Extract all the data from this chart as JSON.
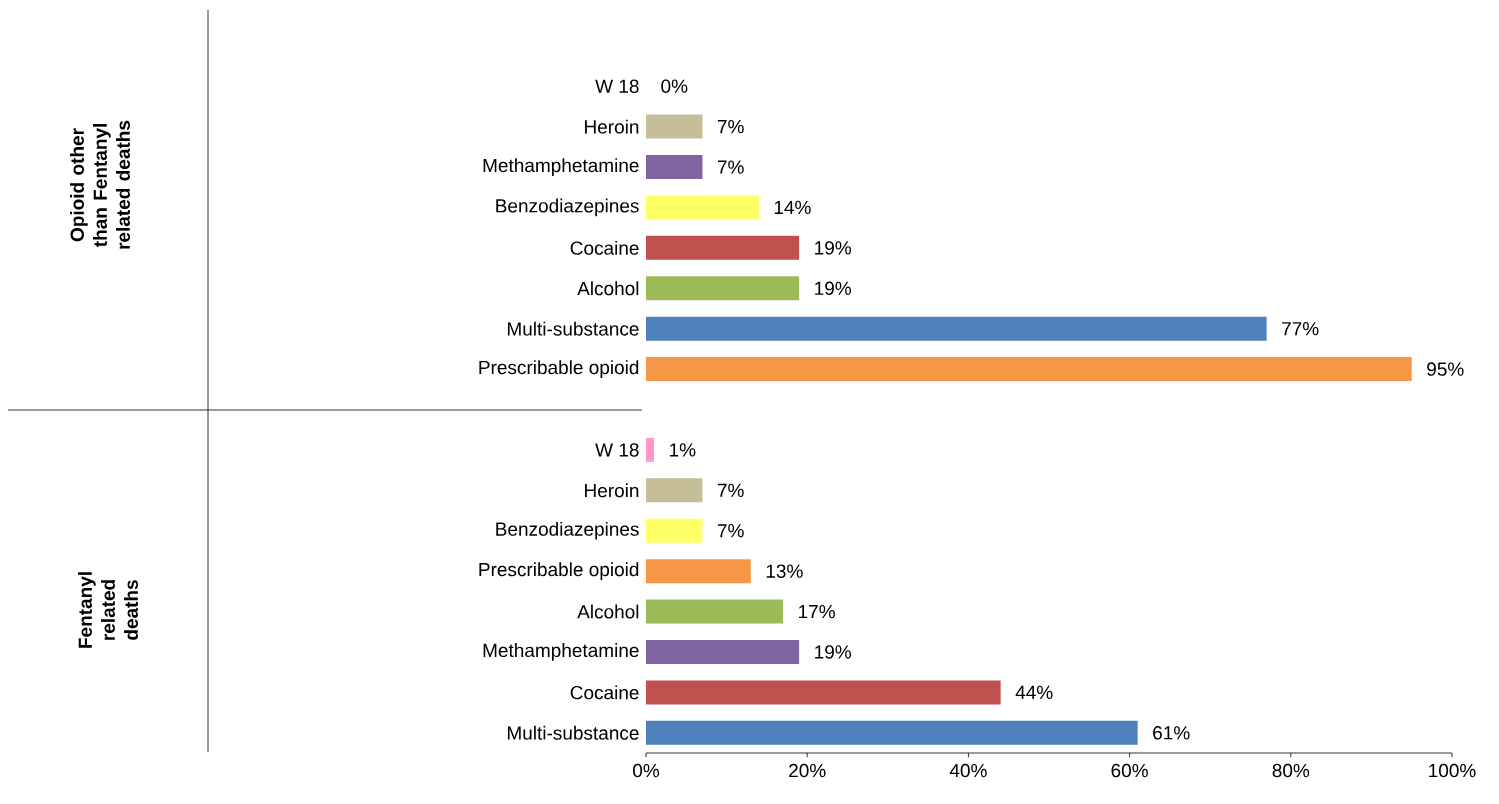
{
  "chart_data": {
    "type": "bar",
    "orientation": "horizontal",
    "categories": [
      "W 18",
      "Heroin",
      "Methamphetamine",
      "Benzodiazepines",
      "Cocaine",
      "Alcohol",
      "Multi-substance",
      "Prescribable opioid",
      null,
      "W 18",
      "Heroin",
      "Benzodiazepines",
      "Prescribable opioid",
      "Alcohol",
      "Methamphetamine",
      "Cocaine",
      "Multi-substance"
    ],
    "values": [
      0,
      7,
      7,
      14,
      19,
      19,
      77,
      95,
      null,
      1,
      7,
      7,
      13,
      17,
      19,
      44,
      61
    ],
    "value_labels": [
      "0%",
      "7%",
      "7%",
      "14%",
      "19%",
      "19%",
      "77%",
      "95%",
      null,
      "1%",
      "7%",
      "7%",
      "13%",
      "17%",
      "19%",
      "44%",
      "61%"
    ],
    "colors": [
      "#ff99cc",
      "#c4bd97",
      "#8064a2",
      "#ffff66",
      "#c0504d",
      "#9bbb59",
      "#4f81bd",
      "#f79646",
      null,
      "#ff99cc",
      "#c4bd97",
      "#ffff66",
      "#f79646",
      "#9bbb59",
      "#8064a2",
      "#c0504d",
      "#4f81bd"
    ],
    "xlim": [
      0,
      100
    ],
    "xticks": [
      {
        "value": 0,
        "label": "0%"
      },
      {
        "value": 20,
        "label": "20%"
      },
      {
        "value": 40,
        "label": "40%"
      },
      {
        "value": 60,
        "label": "60%"
      },
      {
        "value": 80,
        "label": "80%"
      },
      {
        "value": 100,
        "label": "100%"
      }
    ],
    "annotations": [
      "Opioid other than Fentanyl related deaths",
      "Fentanyl related deaths"
    ]
  }
}
